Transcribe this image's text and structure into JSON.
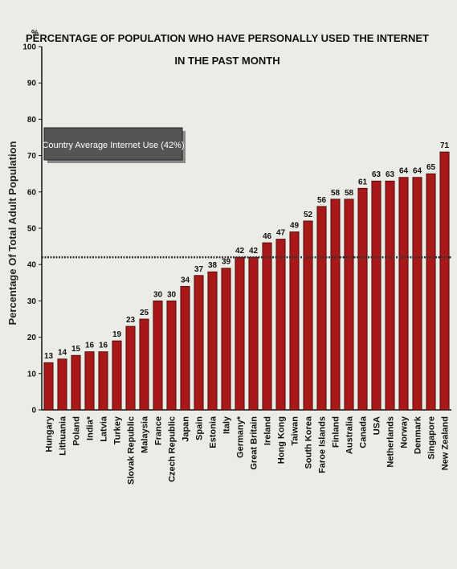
{
  "chart_data": {
    "type": "bar",
    "title_line1": "PERCENTAGE OF POPULATION WHO HAVE PERSONALLY USED THE INTERNET",
    "title_line2": "IN THE PAST MONTH",
    "ylabel": "Percentage Of Total Adult Population",
    "y_unit": "%",
    "ylim": [
      0,
      100
    ],
    "yticks": [
      0,
      10,
      20,
      30,
      40,
      50,
      60,
      70,
      80,
      90,
      100
    ],
    "grid": false,
    "categories": [
      "Hungary",
      "Lithuania",
      "Poland",
      "India*",
      "Latvia",
      "Turkey",
      "Slovak Republic",
      "Malaysia",
      "France",
      "Czech Republic",
      "Japan",
      "Spain",
      "Estonia",
      "Italy",
      "Germany*",
      "Great Britain",
      "Ireland",
      "Hong Kong",
      "Taiwan",
      "South Korea",
      "Faroe Islands",
      "Finland",
      "Australia",
      "Canada",
      "USA",
      "Netherlands",
      "Norway",
      "Denmark",
      "Singapore",
      "New Zealand"
    ],
    "values": [
      13,
      14,
      15,
      16,
      16,
      19,
      23,
      25,
      30,
      30,
      34,
      37,
      38,
      39,
      42,
      42,
      46,
      47,
      49,
      52,
      56,
      58,
      58,
      61,
      63,
      63,
      64,
      64,
      65,
      71
    ],
    "reference_line": {
      "value": 42,
      "label": "Country Average Internet Use (42%)"
    },
    "colors": {
      "bar": "#a81818",
      "bar_edge": "#3a0505",
      "reference_line": "#333333",
      "legend_box": "#555555"
    }
  }
}
